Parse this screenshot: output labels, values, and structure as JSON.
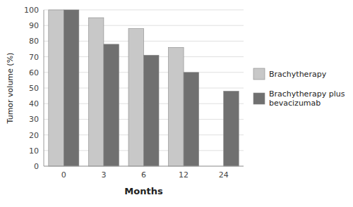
{
  "chart_data": {
    "type": "bar",
    "categories": [
      "0",
      "3",
      "6",
      "12",
      "24"
    ],
    "series": [
      {
        "name": "Brachytherapy",
        "color": "#c8c8c8",
        "values": [
          100,
          95,
          88,
          76,
          null
        ]
      },
      {
        "name": "Brachytherapy plus\nbevacizumab",
        "color": "#707070",
        "values": [
          100,
          78,
          71,
          60,
          48
        ]
      }
    ],
    "x_label": "Months",
    "y_label": "Tumor volume (%)",
    "ylim": [
      0,
      100
    ],
    "yticks": [
      0,
      10,
      20,
      30,
      40,
      50,
      60,
      70,
      80,
      90,
      100
    ],
    "grid": true,
    "legend": "right"
  }
}
